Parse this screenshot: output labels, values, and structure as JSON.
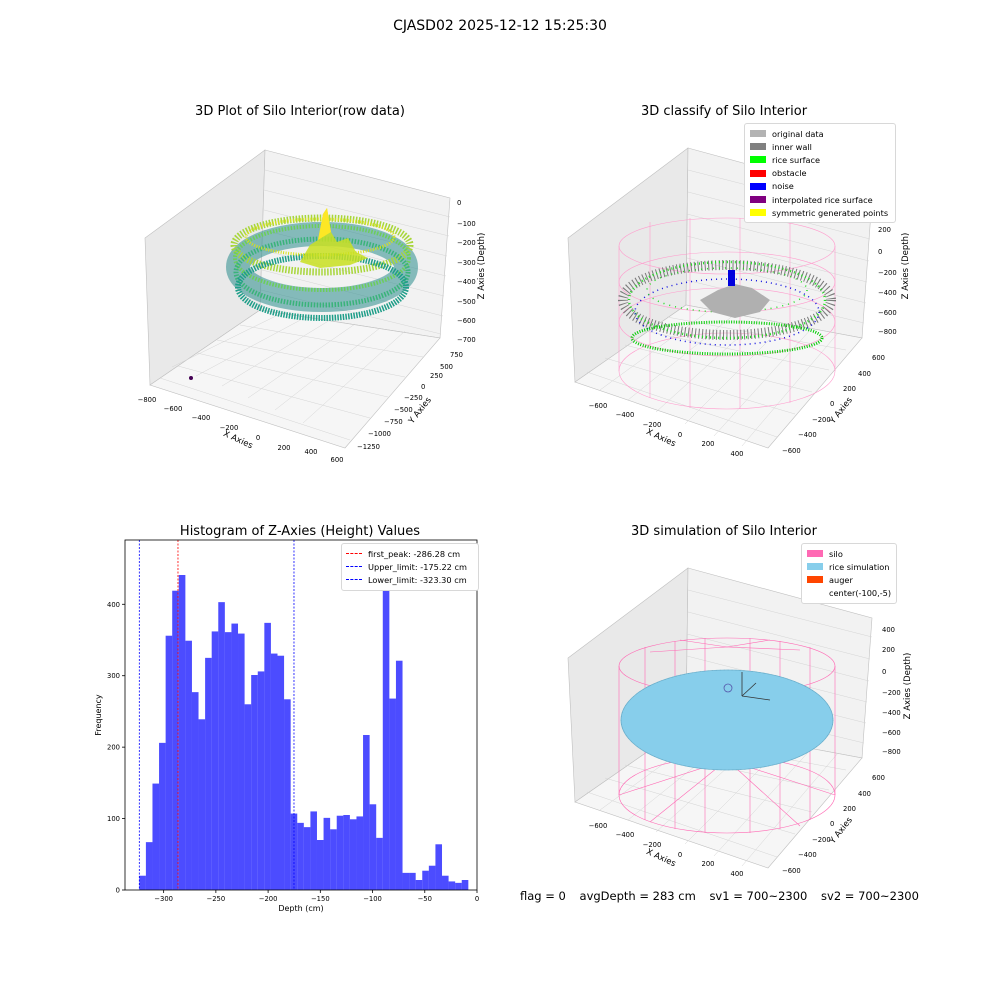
{
  "suptitle": "CJASD02 2025-12-12 15:25:30",
  "status": {
    "flag": "flag = 0",
    "avg_depth": "avgDepth = 283 cm",
    "sv1": "sv1 = 700~2300",
    "sv2": "sv2 = 700~2300"
  },
  "chart_data": [
    {
      "type": "scatter",
      "projection": "3d",
      "title": "3D Plot of Silo Interior(row data)",
      "xlabel": "X Axies",
      "ylabel": "Y Axies",
      "zlabel": "Z Axies (Depth)",
      "xticks": [
        "−800",
        "−600",
        "−400",
        "−200",
        "0",
        "200",
        "400",
        "600"
      ],
      "yticks": [
        "750",
        "500",
        "250",
        "0",
        "−250",
        "−500",
        "−750",
        "−1000",
        "−1250"
      ],
      "zticks": [
        "0",
        "−100",
        "−200",
        "−300",
        "−400",
        "−500",
        "−600",
        "−700"
      ],
      "colormap": "viridis",
      "grid": true
    },
    {
      "type": "scatter",
      "projection": "3d",
      "title": "3D classify of Silo Interior",
      "xlabel": "X Axies",
      "ylabel": "Y Axies",
      "zlabel": "Z Axies (Depth)",
      "xticks": [
        "−600",
        "−400",
        "−200",
        "0",
        "200",
        "400"
      ],
      "yticks": [
        "600",
        "400",
        "200",
        "0",
        "−200",
        "−400",
        "−600"
      ],
      "zticks": [
        "400",
        "200",
        "0",
        "−200",
        "−400",
        "−600",
        "−800"
      ],
      "zticks_partial": [
        "00"
      ],
      "legend": {
        "placement": "top-right",
        "entries": [
          {
            "label": "original data",
            "color": "#b3b3b3"
          },
          {
            "label": "inner wall",
            "color": "#808080"
          },
          {
            "label": "rice surface",
            "color": "#00ff00"
          },
          {
            "label": "obstacle",
            "color": "#ff0000"
          },
          {
            "label": "noise",
            "color": "#0000ff"
          },
          {
            "label": "interpolated rice surface",
            "color": "#800080"
          },
          {
            "label": "symmetric generated points",
            "color": "#ffff00"
          }
        ]
      },
      "grid": true
    },
    {
      "type": "bar",
      "title": "Histogram of Z-Axies (Height) Values",
      "xlabel": "Depth (cm)",
      "ylabel": "Frequency",
      "xlim": [
        -337,
        0
      ],
      "ylim": [
        0,
        490
      ],
      "xticks": [
        -300,
        -250,
        -200,
        -150,
        -100,
        -50,
        0
      ],
      "yticks": [
        0,
        100,
        200,
        300,
        400
      ],
      "bin_width": 6.3,
      "bin_start": -323.3,
      "values": [
        20,
        67,
        149,
        206,
        356,
        419,
        441,
        349,
        277,
        239,
        325,
        362,
        403,
        361,
        373,
        359,
        260,
        301,
        306,
        374,
        331,
        328,
        267,
        107,
        94,
        88,
        110,
        70,
        101,
        85,
        104,
        105,
        99,
        103,
        217,
        120,
        73,
        460,
        268,
        321,
        24,
        24,
        14,
        27,
        34,
        64,
        20,
        12,
        10,
        14
      ],
      "bar_color": "#0000ff",
      "vlines": [
        {
          "label": "first_peak: -286.28 cm",
          "x": -286.28,
          "color": "#ff0000"
        },
        {
          "label": "Upper_limit: -175.22 cm",
          "x": -175.22,
          "color": "#0000ff"
        },
        {
          "label": "Lower_limit: -323.30 cm",
          "x": -323.3,
          "color": "#0000ff"
        }
      ],
      "legend": {
        "placement": "top-right"
      },
      "grid": false
    },
    {
      "type": "surface",
      "projection": "3d",
      "title": "3D simulation of Silo Interior",
      "xlabel": "X Axies",
      "ylabel": "Y Axies",
      "zlabel": "Z Axies (Depth)",
      "xticks": [
        "−600",
        "−400",
        "−200",
        "0",
        "200",
        "400"
      ],
      "yticks": [
        "600",
        "400",
        "200",
        "0",
        "−200",
        "−400",
        "−600"
      ],
      "zticks": [
        "400",
        "200",
        "0",
        "−200",
        "−400",
        "−600",
        "−800"
      ],
      "legend": {
        "placement": "top-right",
        "entries": [
          {
            "label": "silo",
            "color": "#ff69b4"
          },
          {
            "label": "rice simulation",
            "color": "#87ceeb"
          },
          {
            "label": "auger",
            "color": "#ff4500"
          },
          {
            "label": "center(-100,-5)",
            "color": ""
          }
        ]
      },
      "grid": true
    }
  ]
}
